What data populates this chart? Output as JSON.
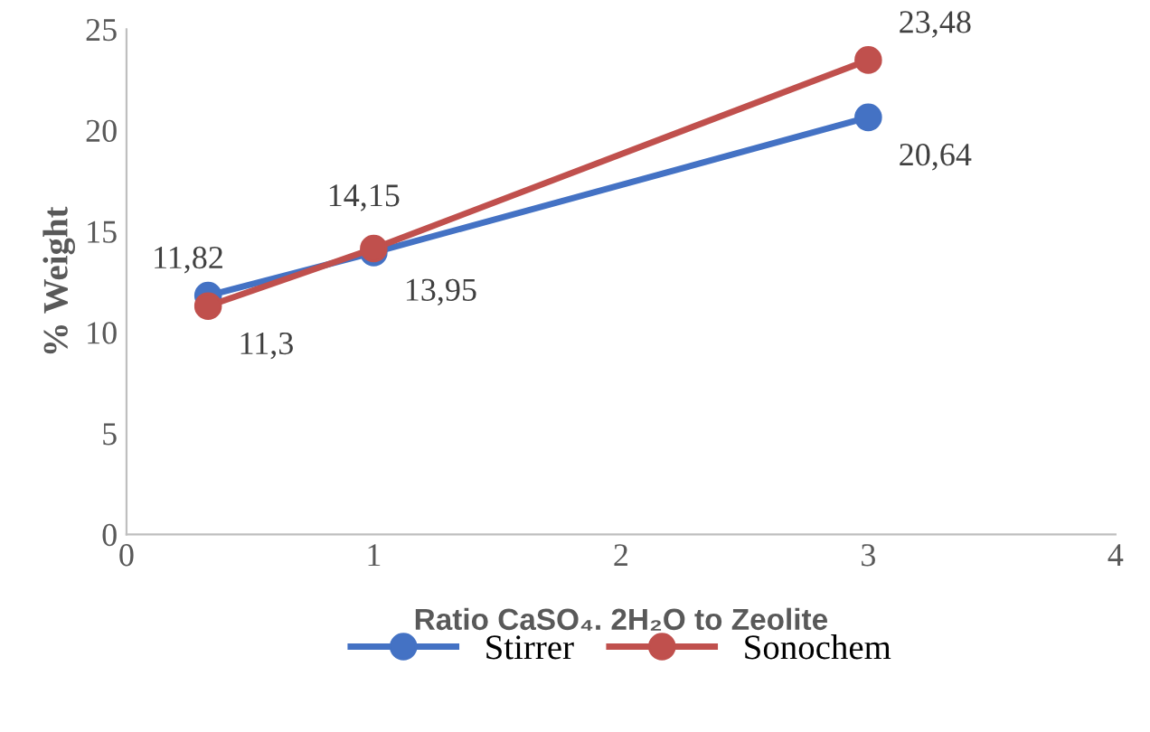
{
  "chart_data": {
    "type": "line",
    "xlabel": "Ratio CaSO₄. 2H₂O to Zeolite",
    "ylabel": "% Weight",
    "x": [
      0.33,
      1,
      3
    ],
    "series": [
      {
        "name": "Stirrer",
        "color": "#4472c4",
        "values": [
          11.82,
          13.95,
          20.64
        ],
        "value_labels": [
          "11,82",
          "13,95",
          "20,64"
        ]
      },
      {
        "name": "Sonochem",
        "color": "#c0504d",
        "values": [
          11.3,
          14.15,
          23.48
        ],
        "value_labels": [
          "11,3",
          "14,15",
          "23,48"
        ]
      }
    ],
    "xlim": [
      0,
      4
    ],
    "xticks": [
      0,
      1,
      2,
      3,
      4
    ],
    "ylim": [
      0,
      25
    ],
    "yticks": [
      0,
      5,
      10,
      15,
      20,
      25
    ],
    "grid": false,
    "legend": "bottom",
    "marker": "circle",
    "line_style": "solid"
  }
}
